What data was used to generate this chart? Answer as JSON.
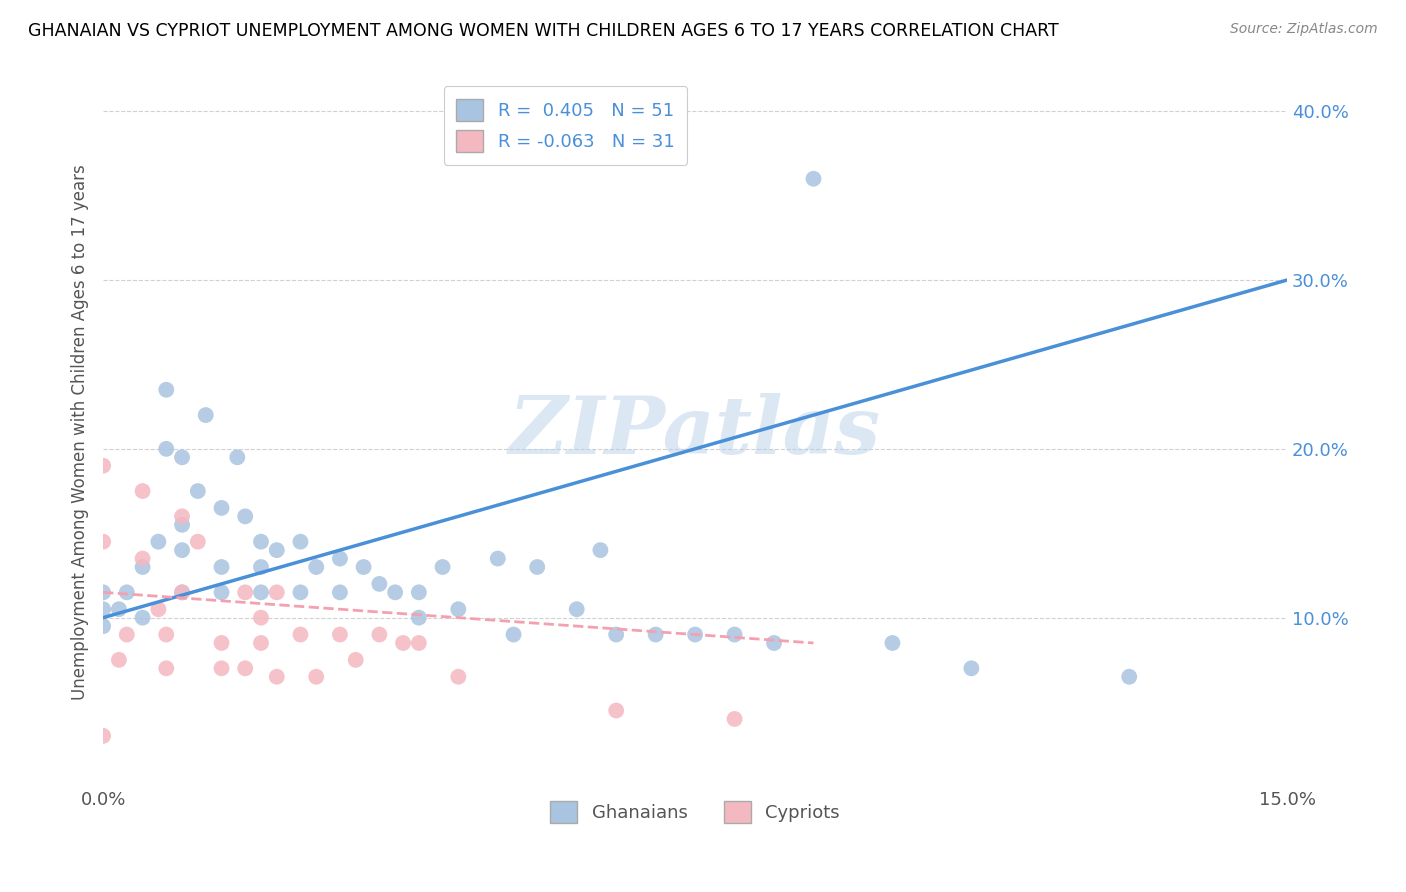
{
  "title": "GHANAIAN VS CYPRIOT UNEMPLOYMENT AMONG WOMEN WITH CHILDREN AGES 6 TO 17 YEARS CORRELATION CHART",
  "source": "Source: ZipAtlas.com",
  "ylabel": "Unemployment Among Women with Children Ages 6 to 17 years",
  "legend_labels": [
    "Ghanaians",
    "Cypriots"
  ],
  "ghanaian_R": 0.405,
  "ghanaian_N": 51,
  "cypriot_R": -0.063,
  "cypriot_N": 31,
  "ghanaian_color": "#a8c4e0",
  "cypriot_color": "#f4b8c1",
  "ghanaian_line_color": "#4a90d9",
  "cypriot_line_color": "#f4a0b0",
  "watermark": "ZIPatlas",
  "xlim": [
    0.0,
    0.15
  ],
  "ylim": [
    0.0,
    0.42
  ],
  "xtick_labels": [
    "0.0%",
    "",
    "",
    "",
    "",
    "15.0%"
  ],
  "yticks_right": [
    0.0,
    0.1,
    0.2,
    0.3,
    0.4
  ],
  "ytick_right_labels": [
    "",
    "10.0%",
    "20.0%",
    "30.0%",
    "40.0%"
  ],
  "ghanaian_line_x": [
    0.0,
    0.15
  ],
  "ghanaian_line_y": [
    0.1,
    0.3
  ],
  "cypriot_line_x": [
    0.0,
    0.09
  ],
  "cypriot_line_y": [
    0.115,
    0.085
  ],
  "ghanaian_x": [
    0.0,
    0.0,
    0.0,
    0.002,
    0.003,
    0.005,
    0.005,
    0.007,
    0.008,
    0.008,
    0.01,
    0.01,
    0.01,
    0.01,
    0.012,
    0.013,
    0.015,
    0.015,
    0.015,
    0.017,
    0.018,
    0.02,
    0.02,
    0.02,
    0.022,
    0.025,
    0.025,
    0.027,
    0.03,
    0.03,
    0.033,
    0.035,
    0.037,
    0.04,
    0.04,
    0.043,
    0.045,
    0.05,
    0.052,
    0.055,
    0.06,
    0.063,
    0.065,
    0.07,
    0.075,
    0.08,
    0.085,
    0.09,
    0.1,
    0.11,
    0.13
  ],
  "ghanaian_y": [
    0.105,
    0.115,
    0.095,
    0.105,
    0.115,
    0.13,
    0.1,
    0.145,
    0.2,
    0.235,
    0.195,
    0.155,
    0.14,
    0.115,
    0.175,
    0.22,
    0.165,
    0.13,
    0.115,
    0.195,
    0.16,
    0.145,
    0.13,
    0.115,
    0.14,
    0.145,
    0.115,
    0.13,
    0.135,
    0.115,
    0.13,
    0.12,
    0.115,
    0.115,
    0.1,
    0.13,
    0.105,
    0.135,
    0.09,
    0.13,
    0.105,
    0.14,
    0.09,
    0.09,
    0.09,
    0.09,
    0.085,
    0.36,
    0.085,
    0.07,
    0.065
  ],
  "cypriot_x": [
    0.0,
    0.0,
    0.0,
    0.002,
    0.003,
    0.005,
    0.005,
    0.007,
    0.008,
    0.008,
    0.01,
    0.01,
    0.012,
    0.015,
    0.015,
    0.018,
    0.018,
    0.02,
    0.02,
    0.022,
    0.022,
    0.025,
    0.027,
    0.03,
    0.032,
    0.035,
    0.038,
    0.04,
    0.045,
    0.065,
    0.08
  ],
  "cypriot_y": [
    0.19,
    0.145,
    0.03,
    0.075,
    0.09,
    0.175,
    0.135,
    0.105,
    0.09,
    0.07,
    0.16,
    0.115,
    0.145,
    0.085,
    0.07,
    0.115,
    0.07,
    0.1,
    0.085,
    0.115,
    0.065,
    0.09,
    0.065,
    0.09,
    0.075,
    0.09,
    0.085,
    0.085,
    0.065,
    0.045,
    0.04
  ]
}
